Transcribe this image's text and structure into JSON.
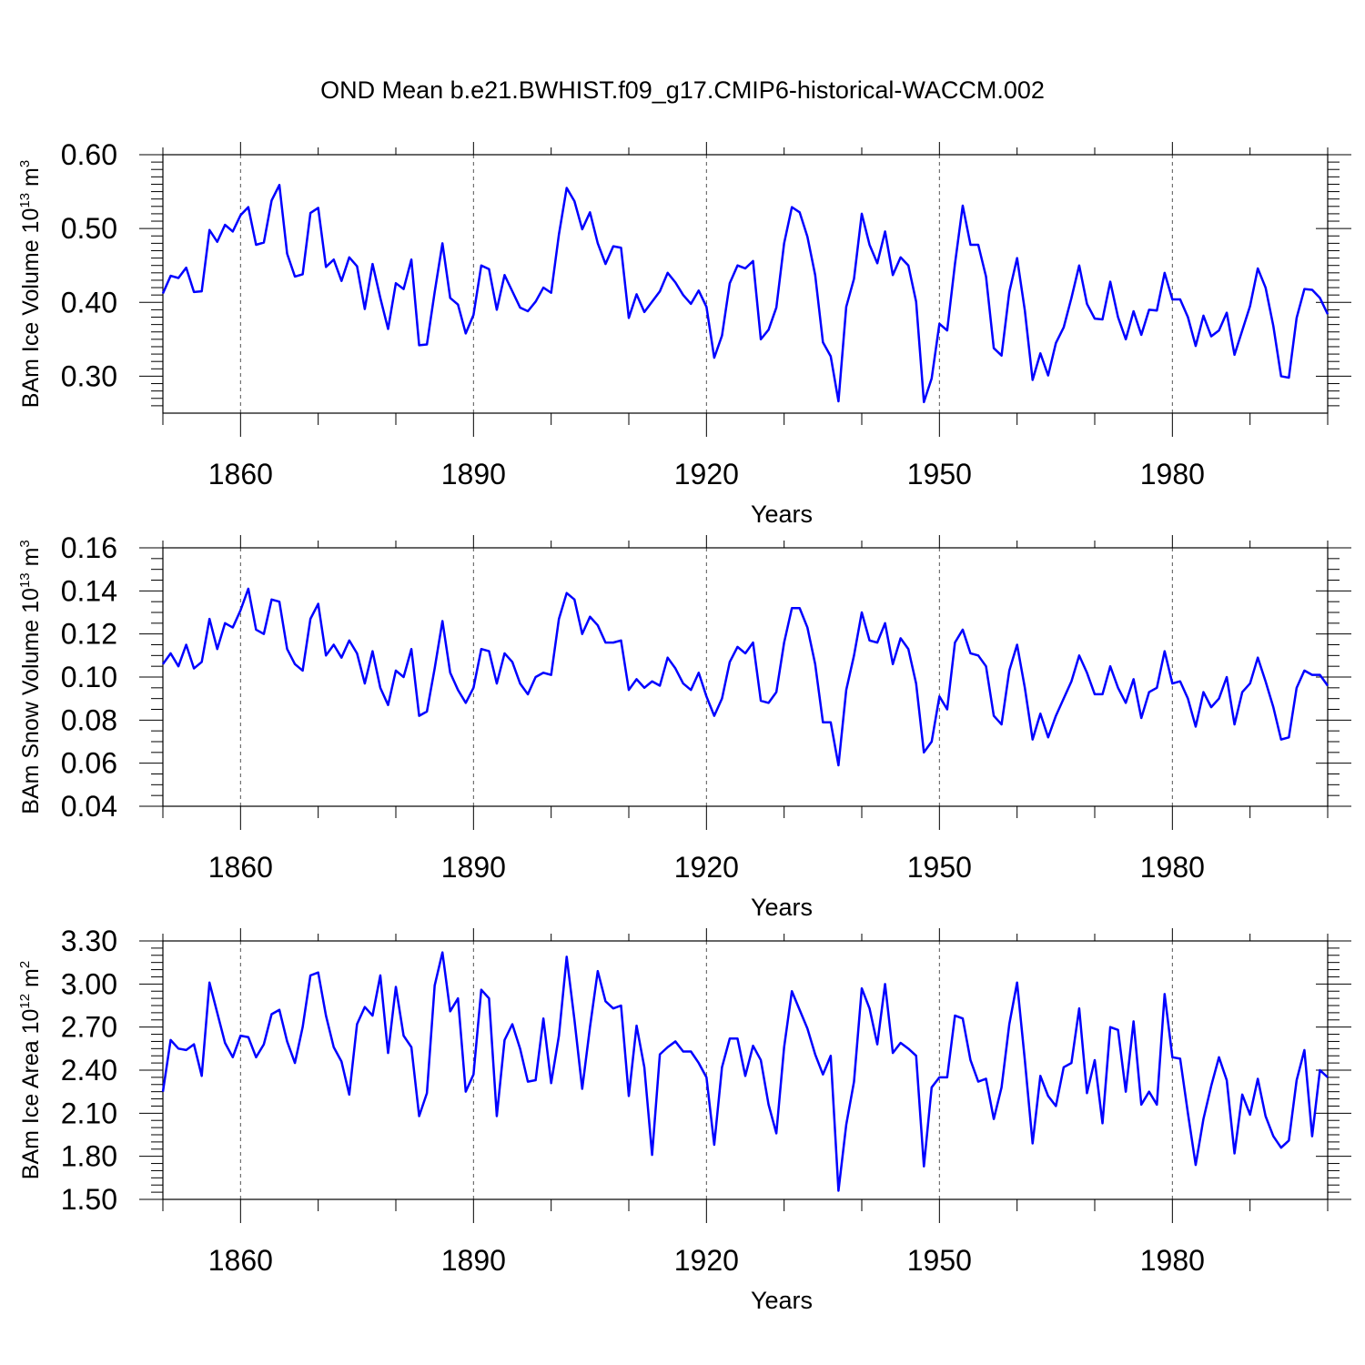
{
  "title": "OND Mean b.e21.BWHIST.f09_g17.CMIP6-historical-WACCM.002",
  "chart_data": [
    {
      "type": "line",
      "ylabel_main": "BAm Ice Volume 10",
      "ylabel_exp": "13",
      "ylabel_unit": " m",
      "ylabel_unit_exp": "3",
      "xlabel": "Years",
      "xlim": [
        1850,
        2000
      ],
      "ylim": [
        0.25,
        0.6
      ],
      "yticks": [
        0.3,
        0.4,
        0.5,
        0.6
      ],
      "yticklabels": [
        "0.30",
        "0.40",
        "0.50",
        "0.60"
      ],
      "yminor": [
        0.26,
        0.27,
        0.28,
        0.29,
        0.31,
        0.32,
        0.33,
        0.34,
        0.35,
        0.36,
        0.37,
        0.38,
        0.39,
        0.41,
        0.42,
        0.43,
        0.44,
        0.45,
        0.46,
        0.47,
        0.48,
        0.49,
        0.51,
        0.52,
        0.53,
        0.54,
        0.55,
        0.56,
        0.57,
        0.58,
        0.59
      ],
      "xticks": [
        1860,
        1890,
        1920,
        1950,
        1980
      ],
      "xticklabels": [
        "1860",
        "1890",
        "1920",
        "1950",
        "1980"
      ],
      "xminor": [
        1850,
        1870,
        1880,
        1900,
        1910,
        1930,
        1940,
        1960,
        1970,
        1990,
        2000
      ],
      "x_start": 1850,
      "series": [
        {
          "name": "BAm Ice Volume",
          "color": "#0000ff",
          "values": [
            0.412,
            0.436,
            0.433,
            0.447,
            0.414,
            0.415,
            0.498,
            0.482,
            0.505,
            0.496,
            0.518,
            0.529,
            0.478,
            0.481,
            0.538,
            0.559,
            0.466,
            0.435,
            0.438,
            0.521,
            0.528,
            0.448,
            0.458,
            0.429,
            0.461,
            0.449,
            0.391,
            0.452,
            0.406,
            0.364,
            0.426,
            0.418,
            0.458,
            0.342,
            0.343,
            0.414,
            0.48,
            0.406,
            0.397,
            0.358,
            0.383,
            0.45,
            0.445,
            0.39,
            0.437,
            0.415,
            0.393,
            0.388,
            0.401,
            0.42,
            0.413,
            0.492,
            0.555,
            0.537,
            0.499,
            0.522,
            0.48,
            0.452,
            0.476,
            0.474,
            0.379,
            0.411,
            0.387,
            0.401,
            0.415,
            0.44,
            0.427,
            0.41,
            0.398,
            0.416,
            0.394,
            0.325,
            0.355,
            0.426,
            0.45,
            0.446,
            0.456,
            0.35,
            0.363,
            0.393,
            0.48,
            0.529,
            0.522,
            0.489,
            0.437,
            0.346,
            0.327,
            0.266,
            0.394,
            0.432,
            0.52,
            0.478,
            0.453,
            0.496,
            0.437,
            0.461,
            0.45,
            0.401,
            0.265,
            0.297,
            0.371,
            0.362,
            0.452,
            0.531,
            0.478,
            0.478,
            0.435,
            0.338,
            0.328,
            0.414,
            0.46,
            0.389,
            0.295,
            0.331,
            0.301,
            0.345,
            0.366,
            0.406,
            0.45,
            0.398,
            0.378,
            0.377,
            0.428,
            0.38,
            0.35,
            0.388,
            0.356,
            0.39,
            0.389,
            0.44,
            0.404,
            0.404,
            0.38,
            0.341,
            0.382,
            0.354,
            0.362,
            0.386,
            0.329,
            0.362,
            0.395,
            0.446,
            0.42,
            0.368,
            0.3,
            0.298,
            0.379,
            0.418,
            0.417,
            0.406,
            0.384
          ]
        }
      ]
    },
    {
      "type": "line",
      "ylabel_main": "BAm Snow Volume 10",
      "ylabel_exp": "13",
      "ylabel_unit": " m",
      "ylabel_unit_exp": "3",
      "xlabel": "Years",
      "xlim": [
        1850,
        2000
      ],
      "ylim": [
        0.04,
        0.16
      ],
      "yticks": [
        0.04,
        0.06,
        0.08,
        0.1,
        0.12,
        0.14,
        0.16
      ],
      "yticklabels": [
        "0.04",
        "0.06",
        "0.08",
        "0.10",
        "0.12",
        "0.14",
        "0.16"
      ],
      "yminor": [
        0.045,
        0.05,
        0.055,
        0.065,
        0.07,
        0.075,
        0.085,
        0.09,
        0.095,
        0.105,
        0.11,
        0.115,
        0.125,
        0.13,
        0.135,
        0.145,
        0.15,
        0.155
      ],
      "xticks": [
        1860,
        1890,
        1920,
        1950,
        1980
      ],
      "xticklabels": [
        "1860",
        "1890",
        "1920",
        "1950",
        "1980"
      ],
      "xminor": [
        1850,
        1870,
        1880,
        1900,
        1910,
        1930,
        1940,
        1960,
        1970,
        1990,
        2000
      ],
      "x_start": 1850,
      "series": [
        {
          "name": "BAm Snow Volume",
          "color": "#0000ff",
          "values": [
            0.106,
            0.111,
            0.105,
            0.115,
            0.104,
            0.107,
            0.127,
            0.113,
            0.125,
            0.123,
            0.131,
            0.141,
            0.122,
            0.12,
            0.136,
            0.135,
            0.113,
            0.106,
            0.103,
            0.127,
            0.134,
            0.11,
            0.115,
            0.109,
            0.117,
            0.111,
            0.097,
            0.112,
            0.095,
            0.087,
            0.103,
            0.1,
            0.113,
            0.082,
            0.084,
            0.104,
            0.126,
            0.102,
            0.094,
            0.088,
            0.095,
            0.113,
            0.112,
            0.097,
            0.111,
            0.107,
            0.097,
            0.092,
            0.1,
            0.102,
            0.101,
            0.127,
            0.139,
            0.136,
            0.12,
            0.128,
            0.124,
            0.116,
            0.116,
            0.117,
            0.094,
            0.099,
            0.095,
            0.098,
            0.096,
            0.109,
            0.104,
            0.097,
            0.094,
            0.102,
            0.091,
            0.082,
            0.09,
            0.107,
            0.114,
            0.111,
            0.116,
            0.089,
            0.088,
            0.093,
            0.116,
            0.132,
            0.132,
            0.123,
            0.106,
            0.079,
            0.079,
            0.059,
            0.094,
            0.11,
            0.13,
            0.117,
            0.116,
            0.125,
            0.106,
            0.118,
            0.113,
            0.097,
            0.065,
            0.07,
            0.091,
            0.085,
            0.116,
            0.122,
            0.111,
            0.11,
            0.105,
            0.082,
            0.078,
            0.103,
            0.115,
            0.095,
            0.071,
            0.083,
            0.072,
            0.082,
            0.09,
            0.098,
            0.11,
            0.102,
            0.092,
            0.092,
            0.105,
            0.095,
            0.088,
            0.099,
            0.081,
            0.093,
            0.095,
            0.112,
            0.097,
            0.098,
            0.09,
            0.077,
            0.093,
            0.086,
            0.09,
            0.1,
            0.078,
            0.093,
            0.097,
            0.109,
            0.098,
            0.086,
            0.071,
            0.072,
            0.095,
            0.103,
            0.101,
            0.101,
            0.096
          ]
        }
      ]
    },
    {
      "type": "line",
      "ylabel_main": "BAm Ice Area 10",
      "ylabel_exp": "12",
      "ylabel_unit": " m",
      "ylabel_unit_exp": "2",
      "xlabel": "Years",
      "xlim": [
        1850,
        2000
      ],
      "ylim": [
        1.5,
        3.3
      ],
      "yticks": [
        1.5,
        1.8,
        2.1,
        2.4,
        2.7,
        3.0,
        3.3
      ],
      "yticklabels": [
        "1.50",
        "1.80",
        "2.10",
        "2.40",
        "2.70",
        "3.00",
        "3.30"
      ],
      "yminor": [
        1.55,
        1.6,
        1.65,
        1.7,
        1.75,
        1.85,
        1.9,
        1.95,
        2.0,
        2.05,
        2.15,
        2.2,
        2.25,
        2.3,
        2.35,
        2.45,
        2.5,
        2.55,
        2.6,
        2.65,
        2.75,
        2.8,
        2.85,
        2.9,
        2.95,
        3.05,
        3.1,
        3.15,
        3.2,
        3.25
      ],
      "xticks": [
        1860,
        1890,
        1920,
        1950,
        1980
      ],
      "xticklabels": [
        "1860",
        "1890",
        "1920",
        "1950",
        "1980"
      ],
      "xminor": [
        1850,
        1870,
        1880,
        1900,
        1910,
        1930,
        1940,
        1960,
        1970,
        1990,
        2000
      ],
      "x_start": 1850,
      "series": [
        {
          "name": "BAm Ice Area",
          "color": "#0000ff",
          "values": [
            2.25,
            2.61,
            2.55,
            2.54,
            2.58,
            2.36,
            3.01,
            2.8,
            2.59,
            2.49,
            2.64,
            2.63,
            2.49,
            2.58,
            2.79,
            2.82,
            2.6,
            2.45,
            2.7,
            3.06,
            3.08,
            2.78,
            2.56,
            2.46,
            2.23,
            2.72,
            2.84,
            2.78,
            3.06,
            2.52,
            2.98,
            2.64,
            2.56,
            2.08,
            2.24,
            2.99,
            3.22,
            2.81,
            2.9,
            2.25,
            2.37,
            2.96,
            2.9,
            2.08,
            2.61,
            2.72,
            2.55,
            2.32,
            2.33,
            2.76,
            2.31,
            2.64,
            3.19,
            2.75,
            2.27,
            2.7,
            3.09,
            2.88,
            2.83,
            2.85,
            2.22,
            2.71,
            2.42,
            1.81,
            2.51,
            2.56,
            2.6,
            2.53,
            2.53,
            2.45,
            2.35,
            1.88,
            2.42,
            2.62,
            2.62,
            2.36,
            2.57,
            2.47,
            2.16,
            1.96,
            2.56,
            2.95,
            2.82,
            2.69,
            2.51,
            2.37,
            2.5,
            1.56,
            2.02,
            2.32,
            2.97,
            2.83,
            2.58,
            3.0,
            2.52,
            2.59,
            2.55,
            2.5,
            1.73,
            2.28,
            2.35,
            2.35,
            2.78,
            2.76,
            2.47,
            2.32,
            2.34,
            2.06,
            2.28,
            2.72,
            3.01,
            2.47,
            1.89,
            2.36,
            2.22,
            2.15,
            2.42,
            2.45,
            2.83,
            2.24,
            2.47,
            2.03,
            2.7,
            2.68,
            2.25,
            2.74,
            2.16,
            2.25,
            2.16,
            2.93,
            2.49,
            2.48,
            2.1,
            1.74,
            2.06,
            2.29,
            2.49,
            2.33,
            1.82,
            2.23,
            2.09,
            2.34,
            2.08,
            1.94,
            1.86,
            1.91,
            2.33,
            2.54,
            1.94,
            2.4,
            2.35
          ]
        }
      ]
    }
  ]
}
